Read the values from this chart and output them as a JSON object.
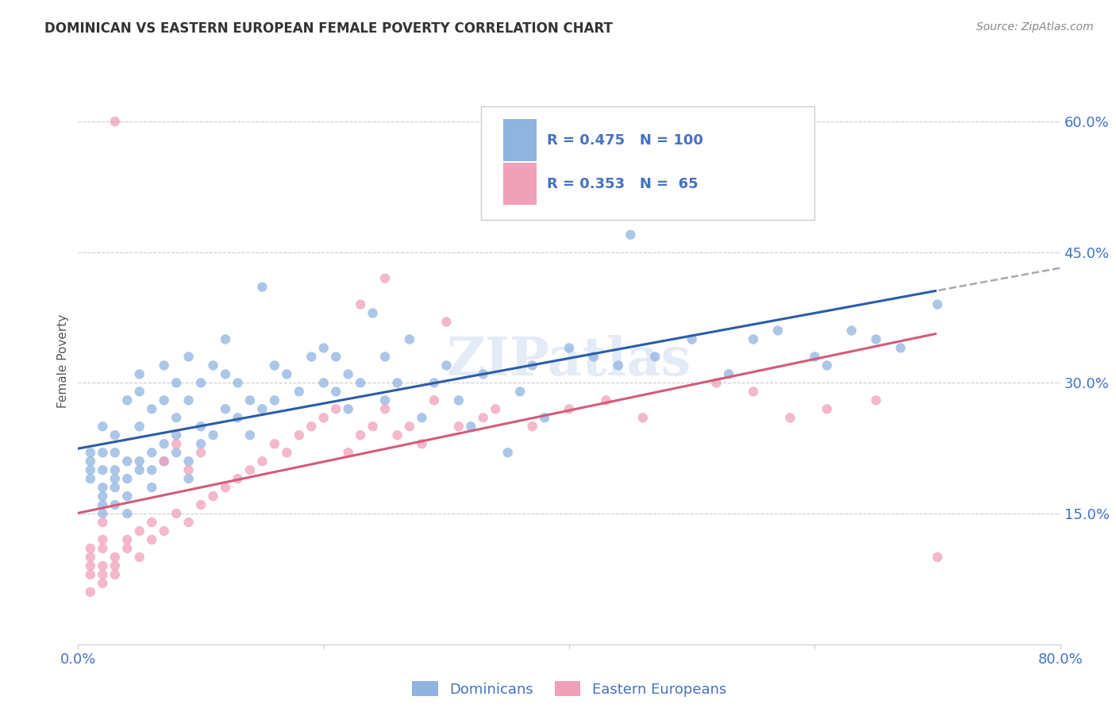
{
  "title": "DOMINICAN VS EASTERN EUROPEAN FEMALE POVERTY CORRELATION CHART",
  "source": "Source: ZipAtlas.com",
  "ylabel": "Female Poverty",
  "x_min": 0.0,
  "x_max": 0.8,
  "y_min": 0.0,
  "y_max": 0.65,
  "x_ticks": [
    0.0,
    0.2,
    0.4,
    0.6,
    0.8
  ],
  "x_tick_labels": [
    "0.0%",
    "",
    "",
    "",
    "80.0%"
  ],
  "y_ticks": [
    0.15,
    0.3,
    0.45,
    0.6
  ],
  "y_tick_labels": [
    "15.0%",
    "30.0%",
    "45.0%",
    "60.0%"
  ],
  "dominican_color": "#91b3e0",
  "eastern_color": "#f0a0b8",
  "dominican_line_color": "#2b5ca8",
  "eastern_line_color": "#d45a7a",
  "dominican_R": 0.475,
  "dominican_N": 100,
  "eastern_R": 0.353,
  "eastern_N": 65,
  "legend_label_dominican": "Dominicans",
  "legend_label_eastern": "Eastern Europeans",
  "watermark": "ZIPatlas",
  "grid_color": "#cccccc",
  "title_color": "#333333",
  "axis_label_color": "#4472c4",
  "legend_R_color": "#4472c4",
  "background_color": "#ffffff",
  "scatter_alpha": 0.75,
  "scatter_size": 80,
  "dominican_x": [
    0.01,
    0.01,
    0.01,
    0.01,
    0.02,
    0.02,
    0.02,
    0.02,
    0.02,
    0.02,
    0.02,
    0.03,
    0.03,
    0.03,
    0.03,
    0.03,
    0.03,
    0.04,
    0.04,
    0.04,
    0.04,
    0.04,
    0.05,
    0.05,
    0.05,
    0.05,
    0.05,
    0.06,
    0.06,
    0.06,
    0.06,
    0.07,
    0.07,
    0.07,
    0.07,
    0.08,
    0.08,
    0.08,
    0.08,
    0.09,
    0.09,
    0.09,
    0.09,
    0.1,
    0.1,
    0.1,
    0.11,
    0.11,
    0.12,
    0.12,
    0.12,
    0.13,
    0.13,
    0.14,
    0.14,
    0.15,
    0.15,
    0.16,
    0.16,
    0.17,
    0.18,
    0.19,
    0.2,
    0.2,
    0.21,
    0.21,
    0.22,
    0.22,
    0.23,
    0.24,
    0.25,
    0.25,
    0.26,
    0.27,
    0.28,
    0.29,
    0.3,
    0.31,
    0.32,
    0.33,
    0.35,
    0.36,
    0.37,
    0.38,
    0.4,
    0.42,
    0.44,
    0.45,
    0.47,
    0.5,
    0.53,
    0.55,
    0.57,
    0.58,
    0.6,
    0.61,
    0.63,
    0.65,
    0.67,
    0.7
  ],
  "dominican_y": [
    0.2,
    0.21,
    0.22,
    0.19,
    0.16,
    0.17,
    0.18,
    0.2,
    0.22,
    0.25,
    0.15,
    0.16,
    0.18,
    0.2,
    0.22,
    0.24,
    0.19,
    0.15,
    0.17,
    0.19,
    0.21,
    0.28,
    0.2,
    0.21,
    0.25,
    0.29,
    0.31,
    0.18,
    0.2,
    0.22,
    0.27,
    0.21,
    0.23,
    0.28,
    0.32,
    0.22,
    0.24,
    0.26,
    0.3,
    0.19,
    0.21,
    0.28,
    0.33,
    0.23,
    0.25,
    0.3,
    0.24,
    0.32,
    0.27,
    0.31,
    0.35,
    0.26,
    0.3,
    0.24,
    0.28,
    0.27,
    0.41,
    0.28,
    0.32,
    0.31,
    0.29,
    0.33,
    0.3,
    0.34,
    0.29,
    0.33,
    0.27,
    0.31,
    0.3,
    0.38,
    0.28,
    0.33,
    0.3,
    0.35,
    0.26,
    0.3,
    0.32,
    0.28,
    0.25,
    0.31,
    0.22,
    0.29,
    0.32,
    0.26,
    0.34,
    0.33,
    0.32,
    0.47,
    0.33,
    0.35,
    0.31,
    0.35,
    0.36,
    0.55,
    0.33,
    0.32,
    0.36,
    0.35,
    0.34,
    0.39
  ],
  "eastern_x": [
    0.01,
    0.01,
    0.01,
    0.01,
    0.01,
    0.02,
    0.02,
    0.02,
    0.02,
    0.02,
    0.02,
    0.03,
    0.03,
    0.03,
    0.04,
    0.04,
    0.05,
    0.05,
    0.06,
    0.06,
    0.07,
    0.07,
    0.08,
    0.08,
    0.09,
    0.09,
    0.1,
    0.1,
    0.11,
    0.12,
    0.13,
    0.14,
    0.15,
    0.16,
    0.17,
    0.18,
    0.19,
    0.2,
    0.21,
    0.22,
    0.23,
    0.24,
    0.25,
    0.26,
    0.27,
    0.28,
    0.29,
    0.31,
    0.33,
    0.34,
    0.37,
    0.4,
    0.43,
    0.46,
    0.52,
    0.55,
    0.58,
    0.61,
    0.65,
    0.7,
    0.23,
    0.25,
    0.3,
    0.03,
    0.5
  ],
  "eastern_y": [
    0.11,
    0.09,
    0.1,
    0.08,
    0.06,
    0.12,
    0.11,
    0.09,
    0.08,
    0.07,
    0.14,
    0.1,
    0.09,
    0.08,
    0.11,
    0.12,
    0.13,
    0.1,
    0.12,
    0.14,
    0.13,
    0.21,
    0.15,
    0.23,
    0.14,
    0.2,
    0.16,
    0.22,
    0.17,
    0.18,
    0.19,
    0.2,
    0.21,
    0.23,
    0.22,
    0.24,
    0.25,
    0.26,
    0.27,
    0.22,
    0.24,
    0.25,
    0.27,
    0.24,
    0.25,
    0.23,
    0.28,
    0.25,
    0.26,
    0.27,
    0.25,
    0.27,
    0.28,
    0.26,
    0.3,
    0.29,
    0.26,
    0.27,
    0.28,
    0.1,
    0.39,
    0.42,
    0.37,
    0.6,
    0.5
  ]
}
